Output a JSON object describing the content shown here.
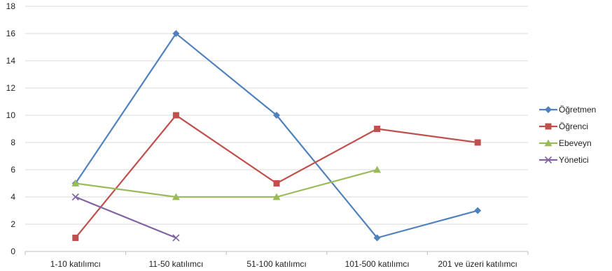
{
  "chart_data": {
    "type": "line",
    "title": "",
    "xlabel": "",
    "ylabel": "",
    "categories": [
      "1-10 katılımcı",
      "11-50 katılımcı",
      "51-100 katılımcı",
      "101-500 katılımcı",
      "201 ve üzeri katılımcı"
    ],
    "ylim": [
      0,
      18
    ],
    "yticks": [
      0,
      2,
      4,
      6,
      8,
      10,
      12,
      14,
      16,
      18
    ],
    "grid": true,
    "legend_position": "right",
    "series": [
      {
        "name": "Öğretmen",
        "values": [
          5,
          16,
          10,
          1,
          3
        ],
        "color": "#4F81BD",
        "marker": "diamond"
      },
      {
        "name": "Öğrenci",
        "values": [
          1,
          10,
          5,
          9,
          8
        ],
        "color": "#C0504D",
        "marker": "square"
      },
      {
        "name": "Ebeveyn",
        "values": [
          5,
          4,
          4,
          6,
          null
        ],
        "color": "#9BBB59",
        "marker": "triangle"
      },
      {
        "name": "Yönetici",
        "values": [
          4,
          1,
          null,
          null,
          null
        ],
        "color": "#8064A2",
        "marker": "x"
      }
    ]
  }
}
